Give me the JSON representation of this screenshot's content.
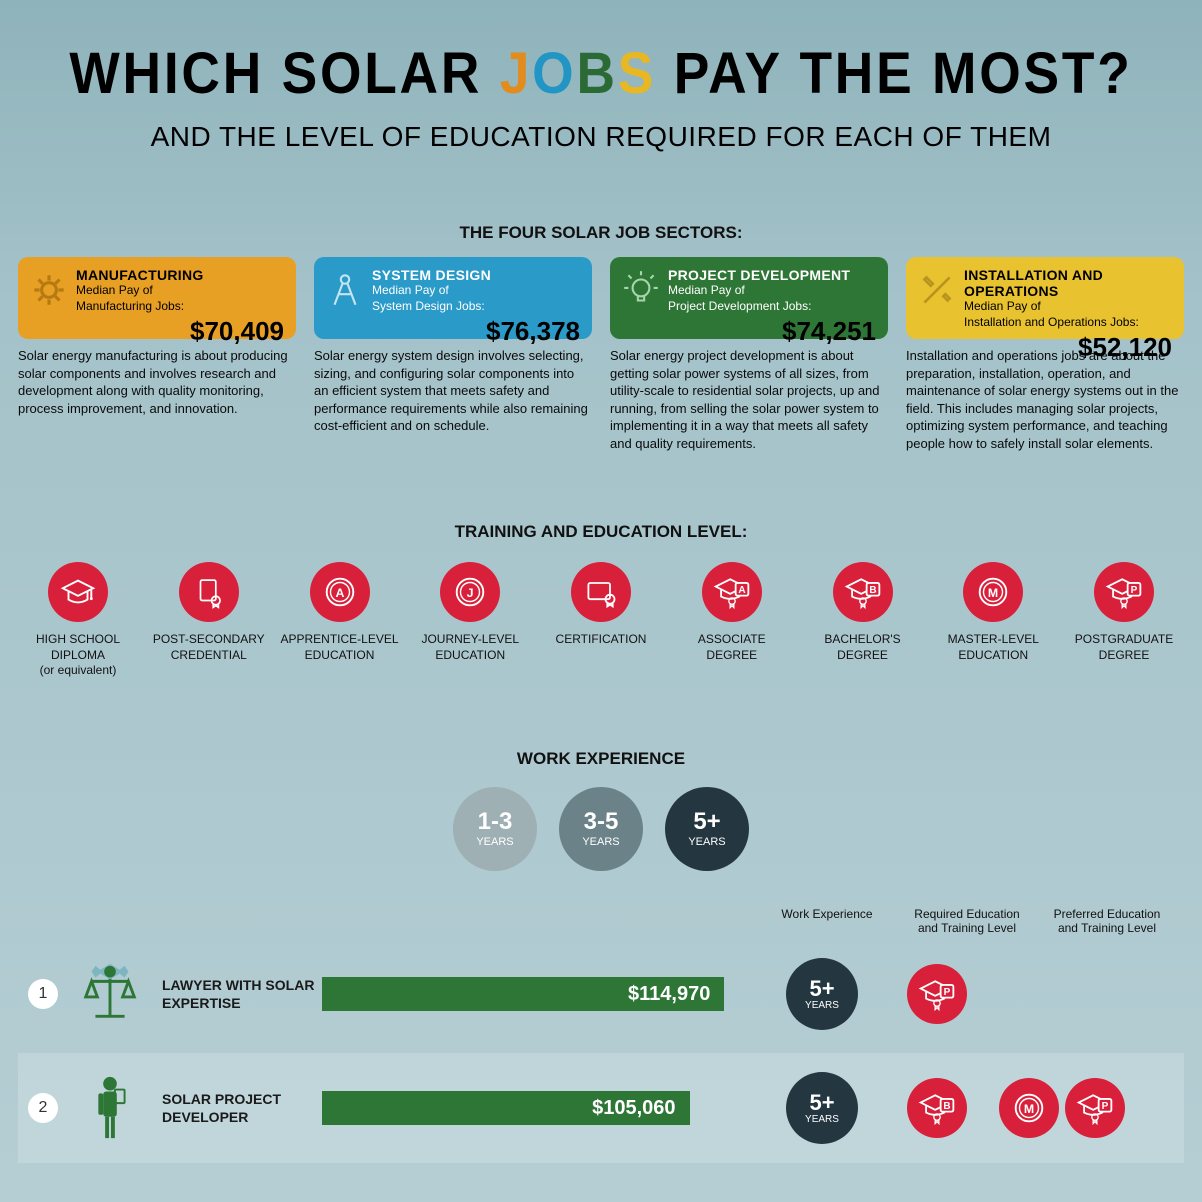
{
  "header": {
    "title_pre": "WHICH SOLAR ",
    "title_jobs": [
      "J",
      "O",
      "B",
      "S"
    ],
    "title_post": " PAY THE MOST?",
    "subtitle": "AND THE LEVEL OF EDUCATION REQUIRED FOR EACH OF THEM"
  },
  "sections": {
    "sectors_label": "THE FOUR SOLAR JOB SECTORS:",
    "edu_label": "TRAINING AND EDUCATION LEVEL:",
    "exp_label": "WORK EXPERIENCE"
  },
  "sectors": [
    {
      "title": "MANUFACTURING",
      "sub1": "Median Pay of",
      "sub2": "Manufacturing Jobs:",
      "pay": "$70,409",
      "color": "orange",
      "icon": "gear",
      "desc": "Solar energy manufacturing is about producing solar components and involves research and development along with quality monitoring, process improvement, and innovation."
    },
    {
      "title": "SYSTEM DESIGN",
      "sub1": "Median Pay of",
      "sub2": "System Design Jobs:",
      "pay": "$76,378",
      "color": "blue",
      "icon": "compass",
      "desc": "Solar energy system design involves selecting, sizing, and configuring solar components into an efficient system that meets safety and performance requirements while also remaining cost-efficient and on schedule."
    },
    {
      "title": "PROJECT DEVELOPMENT",
      "sub1": "Median Pay of",
      "sub2": "Project Development Jobs:",
      "pay": "$74,251",
      "color": "green",
      "icon": "bulb",
      "desc": "Solar energy project development is about getting solar power systems of all sizes, from utility-scale to residential solar projects, up and running, from selling the solar power system to implementing it in a way that meets all safety and quality requirements."
    },
    {
      "title": "INSTALLATION AND OPERATIONS",
      "sub1": "Median Pay of",
      "sub2": "Installation and Operations Jobs:",
      "pay": "$52,120",
      "color": "yellow",
      "icon": "tools",
      "desc": "Installation and operations jobs are about the preparation, installation, operation, and maintenance of solar energy systems out in the field. This includes managing solar projects, optimizing system performance, and teaching people how to safely install solar elements."
    }
  ],
  "education": [
    {
      "label": "HIGH SCHOOL DIPLOMA",
      "sub": "(or equivalent)",
      "icon": "cap"
    },
    {
      "label": "POST-SECONDARY CREDENTIAL",
      "sub": "",
      "icon": "doc"
    },
    {
      "label": "APPRENTICE-LEVEL EDUCATION",
      "sub": "",
      "icon": "badgeA"
    },
    {
      "label": "JOURNEY-LEVEL EDUCATION",
      "sub": "",
      "icon": "badgeJ"
    },
    {
      "label": "CERTIFICATION",
      "sub": "",
      "icon": "cert"
    },
    {
      "label": "ASSOCIATE DEGREE",
      "sub": "",
      "icon": "capA"
    },
    {
      "label": "BACHELOR'S DEGREE",
      "sub": "",
      "icon": "capB"
    },
    {
      "label": "MASTER-LEVEL EDUCATION",
      "sub": "",
      "icon": "badgeM"
    },
    {
      "label": "POSTGRADUATE DEGREE",
      "sub": "",
      "icon": "capP"
    }
  ],
  "experience": [
    {
      "years": "1-3",
      "sub": "YEARS",
      "tone": "light"
    },
    {
      "years": "3-5",
      "sub": "YEARS",
      "tone": "mid"
    },
    {
      "years": "5+",
      "sub": "YEARS",
      "tone": "dark"
    }
  ],
  "columns": {
    "exp": "Work Experience",
    "req": "Required Education and Training Level",
    "pref": "Preferred Education and Training Level"
  },
  "chart": {
    "max_value": 120000,
    "bar_color": "#2e7636"
  },
  "jobs": [
    {
      "num": "1",
      "name": "LAWYER WITH SOLAR EXPERTISE",
      "pay": "$114,970",
      "value": 114970,
      "exp": "5+",
      "req": [
        "capP"
      ],
      "pref": []
    },
    {
      "num": "2",
      "name": "SOLAR PROJECT DEVELOPER",
      "pay": "$105,060",
      "value": 105060,
      "exp": "5+",
      "req": [
        "capB"
      ],
      "pref": [
        "badgeM",
        "capP"
      ]
    }
  ]
}
